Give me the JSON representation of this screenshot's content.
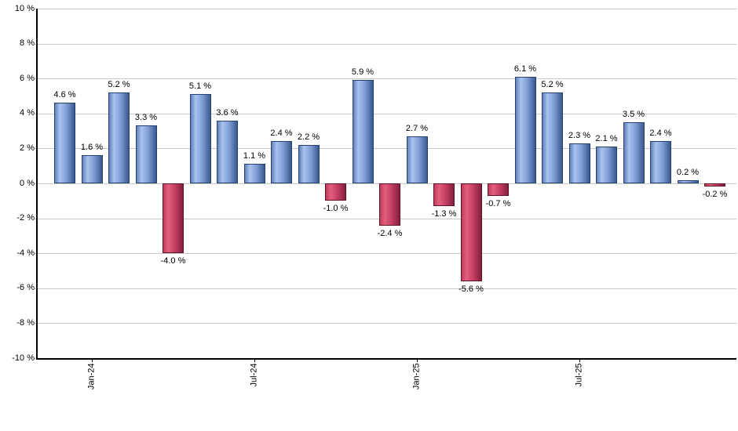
{
  "chart_data": {
    "type": "bar",
    "title": "",
    "xlabel": "",
    "ylabel": "",
    "values": [
      4.6,
      1.6,
      5.2,
      3.3,
      -4.0,
      5.1,
      3.6,
      1.1,
      2.4,
      2.2,
      -1.0,
      5.9,
      -2.4,
      2.7,
      -1.3,
      -5.6,
      -0.7,
      6.1,
      5.2,
      2.3,
      2.1,
      3.5,
      2.4,
      0.2,
      -0.2
    ],
    "value_label_suffix": " %",
    "ylim": [
      -10,
      10
    ],
    "y_ticks": [
      10,
      8,
      6,
      4,
      2,
      0,
      -2,
      -4,
      -6,
      -8,
      -10
    ],
    "y_tick_suffix": " %",
    "x_ticks": [
      {
        "label": "Jan-24",
        "bar_index": 1
      },
      {
        "label": "Jul-24",
        "bar_index": 7
      },
      {
        "label": "Jan-25",
        "bar_index": 13
      },
      {
        "label": "Jul-25",
        "bar_index": 19
      }
    ],
    "grid": true,
    "legend": false,
    "colors": {
      "positive": {
        "edge": "#6081bb",
        "light": "#a8c3ee",
        "mid": "#7d9cd2",
        "dark": "#3a5890",
        "border": "#26436f"
      },
      "negative": {
        "edge": "#c23a58",
        "light": "#e2607f",
        "mid": "#c43d60",
        "dark": "#82203e",
        "border": "#5f1129"
      },
      "gridline": "#c9c9c9",
      "axis": "#000000",
      "label": "#000000",
      "background": "#ffffff"
    }
  }
}
